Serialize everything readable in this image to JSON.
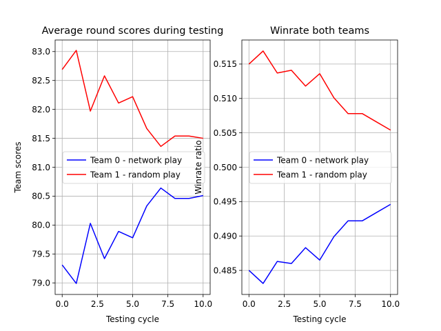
{
  "chart_data": [
    {
      "type": "line",
      "title": "Average round scores during testing",
      "xlabel": "Testing cycle",
      "ylabel": "Team scores",
      "xlim": [
        -0.5,
        10.5
      ],
      "ylim": [
        78.8,
        83.2
      ],
      "xticks": [
        0.0,
        2.5,
        5.0,
        7.5,
        10.0
      ],
      "xtick_labels": [
        "0.0",
        "2.5",
        "5.0",
        "7.5",
        "10.0"
      ],
      "yticks": [
        79.0,
        79.5,
        80.0,
        80.5,
        81.0,
        81.5,
        82.0,
        82.5,
        83.0
      ],
      "ytick_labels": [
        "79.0",
        "79.5",
        "80.0",
        "80.5",
        "81.0",
        "81.5",
        "82.0",
        "82.5",
        "83.0"
      ],
      "grid": true,
      "legend_position": "center-right",
      "x": [
        0,
        1,
        2,
        3,
        4,
        5,
        6,
        7,
        8,
        9,
        10
      ],
      "series": [
        {
          "name": "Team 0 - network play",
          "color": "#0000ff",
          "values": [
            79.31,
            78.99,
            80.03,
            79.42,
            79.89,
            79.78,
            80.33,
            80.64,
            80.46,
            80.46,
            80.51
          ]
        },
        {
          "name": "Team 1 - random play",
          "color": "#ff0000",
          "values": [
            82.69,
            83.02,
            81.97,
            82.58,
            82.11,
            82.22,
            81.67,
            81.36,
            81.54,
            81.54,
            81.5
          ]
        }
      ]
    },
    {
      "type": "line",
      "title": "Winrate both teams",
      "xlabel": "Testing cycle",
      "ylabel": "Winrate ratio",
      "xlim": [
        -0.5,
        10.5
      ],
      "ylim": [
        0.4815,
        0.5185
      ],
      "xticks": [
        0.0,
        2.5,
        5.0,
        7.5,
        10.0
      ],
      "xtick_labels": [
        "0.0",
        "2.5",
        "5.0",
        "7.5",
        "10.0"
      ],
      "yticks": [
        0.485,
        0.49,
        0.495,
        0.5,
        0.505,
        0.51,
        0.515
      ],
      "ytick_labels": [
        "0.485",
        "0.490",
        "0.495",
        "0.500",
        "0.505",
        "0.510",
        "0.515"
      ],
      "grid": true,
      "legend_position": "center",
      "x": [
        0,
        1,
        2,
        3,
        4,
        5,
        6,
        7,
        8,
        9,
        10
      ],
      "series": [
        {
          "name": "Team 0 - network play",
          "color": "#0000ff",
          "values": [
            0.485,
            0.4831,
            0.4863,
            0.486,
            0.4883,
            0.4865,
            0.4899,
            0.4922,
            0.4922,
            0.4934,
            0.4946
          ]
        },
        {
          "name": "Team 1 - random play",
          "color": "#ff0000",
          "values": [
            0.515,
            0.5169,
            0.5137,
            0.5141,
            0.5118,
            0.5136,
            0.5101,
            0.5078,
            0.5078,
            0.5066,
            0.5054
          ]
        }
      ]
    }
  ]
}
